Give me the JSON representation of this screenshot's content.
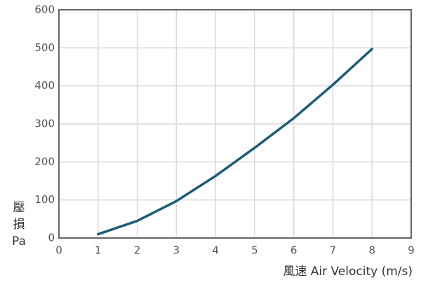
{
  "chart_data": {
    "type": "line",
    "x_label": "風速 Air Velocity (m/s)",
    "y_label": [
      "壓",
      "損",
      "Pa"
    ],
    "x": [
      1,
      2,
      3,
      4,
      5,
      6,
      7,
      8
    ],
    "series": [
      {
        "color": "#1c5c78",
        "values": [
          10,
          45,
          97,
          163,
          237,
          315,
          403,
          497
        ]
      }
    ],
    "xlim": [
      0,
      9
    ],
    "xticks": [
      0,
      1,
      2,
      3,
      4,
      5,
      6,
      7,
      8,
      9
    ],
    "ylim": [
      0,
      600
    ],
    "yticks": [
      0,
      100,
      200,
      300,
      400,
      500,
      600
    ],
    "grid": true
  }
}
